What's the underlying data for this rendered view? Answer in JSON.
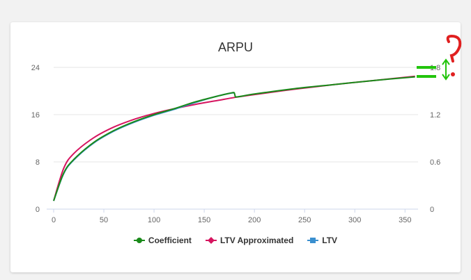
{
  "chart_data": {
    "type": "line",
    "title": "ARPU",
    "xlabel": "",
    "ylabel": "",
    "x_ticks": [
      "0",
      "50",
      "100",
      "150",
      "200",
      "250",
      "300",
      "350"
    ],
    "y_ticks_left": [
      "0",
      "8",
      "16",
      "24"
    ],
    "y_ticks_right": [
      "0",
      "0.6",
      "1.2",
      "1.8"
    ],
    "xlim": [
      0,
      363
    ],
    "ylim": [
      0,
      24
    ],
    "y2lim": [
      0,
      1.8
    ],
    "grid": true,
    "legend_position": "bottom",
    "series": [
      {
        "name": "Coefficient",
        "color": "#1a8a1a",
        "marker": "circle",
        "x": [
          0,
          10,
          20,
          40,
          60,
          80,
          100,
          120,
          140,
          160,
          175,
          180,
          181,
          200,
          240,
          280,
          320,
          360
        ],
        "y": [
          1.4,
          6.1,
          8.4,
          11.3,
          13.3,
          14.8,
          16.0,
          17.0,
          18.1,
          19.0,
          19.6,
          19.7,
          19.0,
          19.5,
          20.4,
          21.1,
          21.8,
          22.4
        ]
      },
      {
        "name": "LTV Approximated",
        "color": "#d6145f",
        "marker": "diamond",
        "x": [
          0,
          10,
          20,
          40,
          60,
          80,
          100,
          120,
          140,
          160,
          180,
          200,
          240,
          280,
          320,
          360
        ],
        "y": [
          1.4,
          6.9,
          9.4,
          12.1,
          13.9,
          15.2,
          16.2,
          17.0,
          17.7,
          18.3,
          18.9,
          19.4,
          20.3,
          21.1,
          21.8,
          22.5
        ]
      },
      {
        "name": "LTV",
        "color": "#3a8fcf",
        "marker": "square",
        "x": [
          0,
          10,
          20,
          40,
          60,
          80,
          100,
          120,
          140,
          160,
          175,
          180
        ],
        "y": [
          1.4,
          6.0,
          8.3,
          11.2,
          13.2,
          14.7,
          15.9,
          16.9,
          18.0,
          19.0,
          19.6,
          19.7
        ]
      }
    ],
    "annotations": [
      {
        "type": "question-mark",
        "color": "#e02020"
      },
      {
        "type": "double-arrow",
        "color": "#22c40c"
      },
      {
        "type": "bars",
        "color": "#22c40c"
      }
    ]
  }
}
